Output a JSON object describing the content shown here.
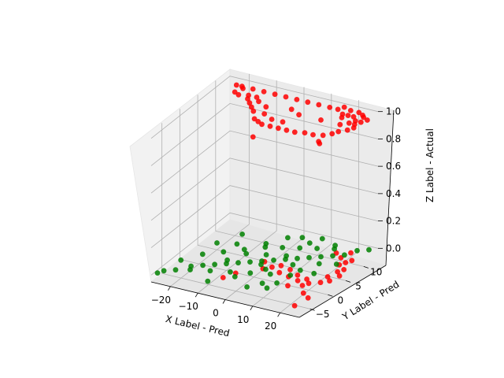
{
  "chart_data": {
    "type": "scatter",
    "projection": "3d",
    "xlabel": "X Label - Pred",
    "ylabel": "Y Label - Pred",
    "zlabel": "Z Label - Actual",
    "xlim": [
      -27,
      27
    ],
    "ylim": [
      -8,
      14
    ],
    "zlim": [
      -0.05,
      1.05
    ],
    "x_ticks": [
      "−20",
      "−10",
      "0",
      "10",
      "20"
    ],
    "y_ticks": [
      "−5",
      "0",
      "5",
      "10"
    ],
    "z_ticks": [
      "0.0",
      "0.2",
      "0.4",
      "0.6",
      "0.8",
      "1.0"
    ],
    "grid": true,
    "series": [
      {
        "color": "#ff0000",
        "z_level": 1.0,
        "points": [
          [
            -20,
            12,
            1
          ],
          [
            -16,
            12,
            1
          ],
          [
            -12,
            12,
            1
          ],
          [
            -8,
            12,
            1
          ],
          [
            -4,
            12,
            1
          ],
          [
            0,
            12,
            1
          ],
          [
            4,
            12,
            1
          ],
          [
            8,
            12,
            1
          ],
          [
            12,
            12,
            1
          ],
          [
            15,
            12,
            1
          ],
          [
            18,
            11,
            1
          ],
          [
            20,
            11,
            1
          ],
          [
            22,
            11,
            1
          ],
          [
            24,
            12,
            1
          ],
          [
            24,
            10,
            1
          ],
          [
            25,
            9,
            1
          ],
          [
            26,
            8,
            1
          ],
          [
            25,
            7,
            1
          ],
          [
            23,
            6,
            1
          ],
          [
            22,
            5,
            1
          ],
          [
            20,
            4,
            1
          ],
          [
            17,
            3.5,
            1
          ],
          [
            14,
            3.5,
            1
          ],
          [
            11,
            3,
            1
          ],
          [
            8,
            3,
            1
          ],
          [
            5,
            3,
            1
          ],
          [
            2,
            3,
            1
          ],
          [
            -1,
            3,
            1
          ],
          [
            -3,
            3.5,
            1
          ],
          [
            -5,
            4,
            1
          ],
          [
            -8,
            6,
            1
          ],
          [
            -10,
            7,
            1
          ],
          [
            -12,
            8,
            1
          ],
          [
            -15,
            10,
            1
          ],
          [
            -19,
            11.5,
            1
          ],
          [
            -22,
            12,
            1
          ],
          [
            -20,
            10,
            1
          ],
          [
            -18,
            9.5,
            1
          ],
          [
            -14,
            9,
            1
          ],
          [
            -12,
            10,
            1
          ],
          [
            -10,
            9,
            1
          ],
          [
            -6,
            8,
            1
          ],
          [
            -4,
            6,
            1
          ],
          [
            0,
            5,
            1
          ],
          [
            4,
            5,
            1
          ],
          [
            6,
            8,
            1
          ],
          [
            2,
            9,
            1
          ],
          [
            19,
            10,
            1
          ],
          [
            21,
            8,
            1
          ],
          [
            23,
            9,
            1
          ],
          [
            26,
            10,
            1
          ],
          [
            27,
            11,
            1
          ],
          [
            25,
            11.5,
            1
          ],
          [
            22,
            12.5,
            1
          ],
          [
            19,
            12.5,
            1
          ],
          [
            16,
            13,
            1
          ],
          [
            14,
            8,
            1
          ],
          [
            21,
            2,
            1
          ],
          [
            22,
            1.5,
            1
          ],
          [
            1,
            -1,
            1
          ]
        ]
      },
      {
        "color": "#ff0000",
        "z_level": 0.0,
        "points": [
          [
            0,
            3,
            0
          ],
          [
            4,
            2,
            0
          ],
          [
            8,
            1,
            0
          ],
          [
            12,
            0.5,
            0
          ],
          [
            16,
            0,
            0
          ],
          [
            20,
            0,
            0
          ],
          [
            23,
            1,
            0
          ],
          [
            25,
            2,
            0
          ],
          [
            26,
            4,
            0
          ],
          [
            25,
            6,
            0
          ],
          [
            23,
            8,
            0
          ],
          [
            20,
            9,
            0
          ],
          [
            17,
            10,
            0
          ],
          [
            22,
            -3,
            0
          ],
          [
            25,
            -4,
            0
          ],
          [
            24,
            -7,
            0
          ],
          [
            23,
            3,
            0
          ],
          [
            24,
            5,
            0
          ],
          [
            22,
            7,
            0
          ],
          [
            6,
            3,
            0
          ],
          [
            2,
            1,
            0
          ],
          [
            10,
            2.5,
            0
          ],
          [
            14,
            1.5,
            0
          ],
          [
            18,
            1,
            0
          ],
          [
            21,
            11,
            0
          ],
          [
            24,
            9,
            0
          ],
          [
            19,
            -1,
            0
          ],
          [
            15,
            -2,
            0
          ],
          [
            -4,
            -2,
            0
          ],
          [
            -6,
            -4,
            0
          ]
        ]
      },
      {
        "color": "#008000",
        "z_level": 0.0,
        "points": [
          [
            -25,
            -6,
            0
          ],
          [
            -22,
            -5,
            0
          ],
          [
            -19,
            -3,
            0
          ],
          [
            -16,
            -2,
            0
          ],
          [
            -13,
            -1,
            0
          ],
          [
            -10,
            0,
            0
          ],
          [
            -7,
            1,
            0
          ],
          [
            -4,
            2,
            0
          ],
          [
            -1,
            3,
            0
          ],
          [
            2,
            4,
            0
          ],
          [
            5,
            5,
            0
          ],
          [
            8,
            6,
            0
          ],
          [
            11,
            7,
            0
          ],
          [
            14,
            8,
            0
          ],
          [
            17,
            9,
            0
          ],
          [
            20,
            10,
            0
          ],
          [
            22,
            12,
            0
          ],
          [
            -20,
            1,
            0
          ],
          [
            -15,
            3,
            0
          ],
          [
            -10,
            5,
            0
          ],
          [
            -5,
            7,
            0
          ],
          [
            0,
            8,
            0
          ],
          [
            5,
            9,
            0
          ],
          [
            10,
            10,
            0
          ],
          [
            15,
            11,
            0
          ],
          [
            -18,
            -4,
            0
          ],
          [
            -12,
            -3,
            0
          ],
          [
            -6,
            -2,
            0
          ],
          [
            0,
            -1,
            0
          ],
          [
            6,
            0,
            0
          ],
          [
            12,
            1,
            0
          ],
          [
            18,
            3,
            0
          ],
          [
            -8,
            4,
            0
          ],
          [
            -2,
            5,
            0
          ],
          [
            4,
            6,
            0
          ],
          [
            9,
            4,
            0
          ],
          [
            3,
            1,
            0
          ],
          [
            -3,
            -3,
            0
          ],
          [
            7,
            -3,
            0
          ],
          [
            -14,
            6,
            0
          ],
          [
            -20,
            5,
            0
          ],
          [
            16,
            6,
            0
          ],
          [
            -24,
            -2,
            0
          ],
          [
            -26,
            -7,
            0
          ],
          [
            2,
            12,
            0
          ],
          [
            8,
            13,
            0
          ],
          [
            25,
            13,
            0
          ],
          [
            21,
            7,
            0
          ],
          [
            13,
            3,
            0
          ],
          [
            -9,
            -6,
            0
          ],
          [
            4,
            -5,
            0
          ],
          [
            11,
            -2,
            0
          ],
          [
            -16,
            9,
            0
          ],
          [
            -2,
            11,
            0
          ],
          [
            14,
            12,
            0
          ],
          [
            0,
            2,
            0
          ],
          [
            -6,
            8,
            0
          ],
          [
            6,
            11,
            0
          ],
          [
            -11,
            1,
            0
          ],
          [
            10,
            -4,
            0
          ]
        ]
      }
    ]
  }
}
